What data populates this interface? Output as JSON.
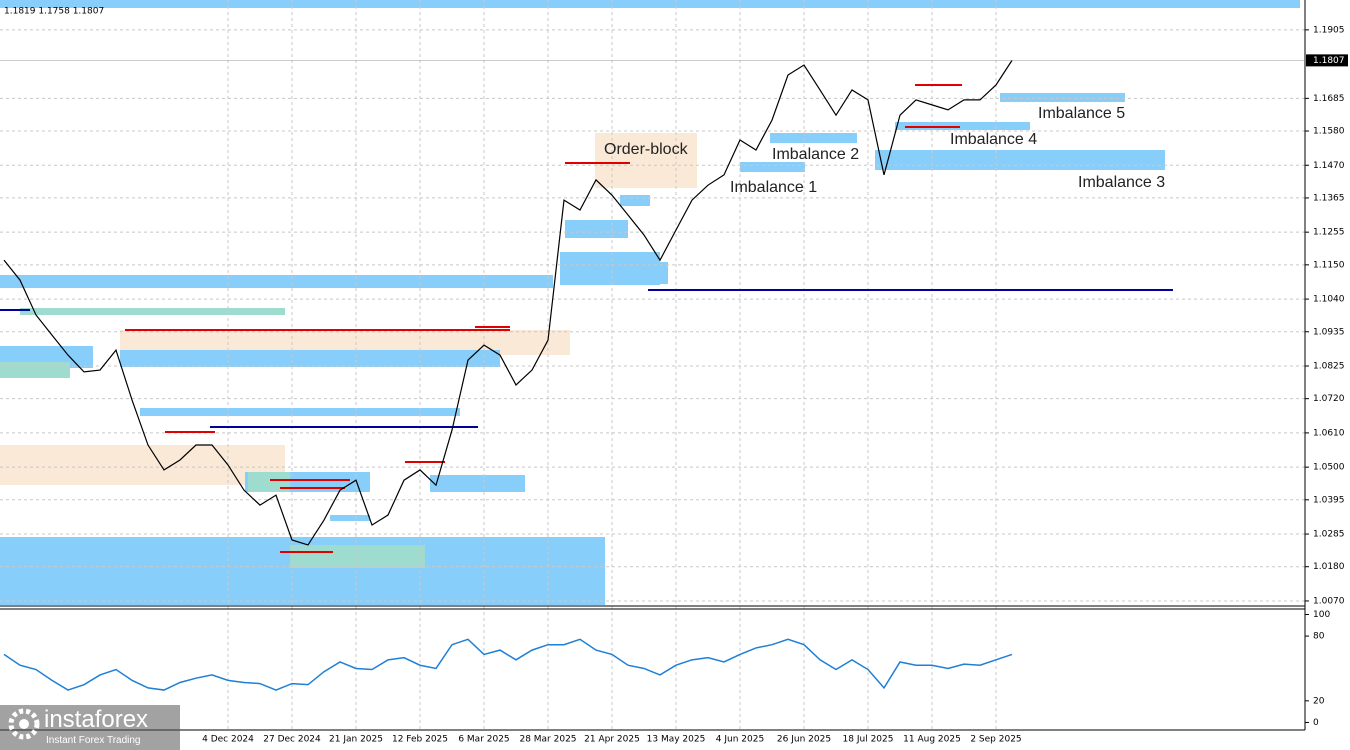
{
  "chart_data": [
    {
      "type": "line",
      "title": "1.1819 1.1758 1.1807",
      "categories": [
        null,
        null,
        null,
        null,
        null,
        null,
        null,
        null,
        null,
        null,
        null,
        null,
        null,
        null,
        "4 Dec 2024",
        null,
        null,
        null,
        "27 Dec 2024",
        null,
        null,
        null,
        "21 Jan 2025",
        null,
        null,
        null,
        "12 Feb 2025",
        null,
        null,
        null,
        "6 Mar 2025",
        null,
        null,
        null,
        "28 Mar 2025",
        null,
        null,
        null,
        "21 Apr 2025",
        null,
        null,
        null,
        "13 May 2025",
        null,
        null,
        null,
        "4 Jun 2025",
        null,
        null,
        null,
        "26 Jun 2025",
        null,
        null,
        null,
        "18 Jul 2025",
        null,
        null,
        null,
        "11 Aug 2025",
        null,
        null,
        null,
        "2 Sep 2025",
        null
      ],
      "series": [
        {
          "color": "#000000",
          "values": [
            1.1165,
            1.1101,
            1.0989,
            1.0924,
            1.086,
            1.0806,
            1.0812,
            1.0876,
            1.0716,
            1.0571,
            1.0491,
            1.0523,
            1.0571,
            1.0571,
            1.0507,
            1.0426,
            1.0378,
            1.041,
            1.0266,
            1.025,
            1.033,
            1.0426,
            1.0458,
            1.0314,
            1.0346,
            1.0458,
            1.0491,
            1.0442,
            1.0619,
            1.0844,
            1.0892,
            1.086,
            1.0764,
            1.0812,
            1.0908,
            1.1358,
            1.1326,
            1.1423,
            1.1374,
            1.131,
            1.1246,
            1.1165,
            1.1262,
            1.1358,
            1.1406,
            1.1439,
            1.1551,
            1.1519,
            1.1615,
            1.176,
            1.1792,
            1.1712,
            1.1631,
            1.1712,
            1.168,
            1.1439,
            1.1631,
            1.168,
            1.1664,
            1.1648,
            1.168,
            1.168,
            1.1728,
            1.1807
          ]
        }
      ],
      "ylim": [
        1.0057,
        1.2001
      ],
      "yticks": [
        1.1905,
        {
          "value": 1.1685,
          "label": "1.1685"
        },
        {
          "value": 1.158,
          "label": "1.1580"
        },
        {
          "value": 1.147,
          "label": "1.1470"
        },
        1.1365,
        1.1255,
        {
          "value": 1.115,
          "label": "1.1150"
        },
        {
          "value": 1.104,
          "label": "1.1040"
        },
        1.0935,
        1.0825,
        {
          "value": 1.072,
          "label": "1.0720"
        },
        {
          "value": 1.061,
          "label": "1.0610"
        },
        {
          "value": 1.05,
          "label": "1.0500"
        },
        1.0395,
        1.0285,
        {
          "value": 1.018,
          "label": "1.0180"
        },
        {
          "value": 1.007,
          "label": "1.0070"
        }
      ],
      "current_price": 1.1807,
      "annotations": [
        "Order-block",
        "Imbalance 2",
        "Imbalance 1",
        "Imbalance 5",
        "Imbalance 4",
        "Imbalance 3"
      ],
      "grid": true
    },
    {
      "type": "line",
      "series": [
        {
          "color": "#1e7fd6",
          "values": [
            63,
            53,
            49,
            39,
            30,
            35,
            44,
            49,
            39,
            32,
            30,
            37,
            41,
            44,
            39,
            37,
            36,
            30,
            36,
            35,
            47,
            56,
            50,
            49,
            58,
            60,
            53,
            50,
            72,
            77,
            63,
            67,
            58,
            67,
            72,
            72,
            77,
            67,
            63,
            53,
            50,
            44,
            53,
            58,
            60,
            56,
            63,
            69,
            72,
            77,
            72,
            58,
            49,
            58,
            49,
            32,
            56,
            53,
            53,
            50,
            54,
            53,
            58,
            63
          ]
        }
      ],
      "ylim": [
        -7,
        106
      ],
      "yticks": [
        100,
        80,
        20,
        0
      ]
    }
  ],
  "logo": {
    "name": "instaforex",
    "tagline": "Instant Forex Trading"
  }
}
